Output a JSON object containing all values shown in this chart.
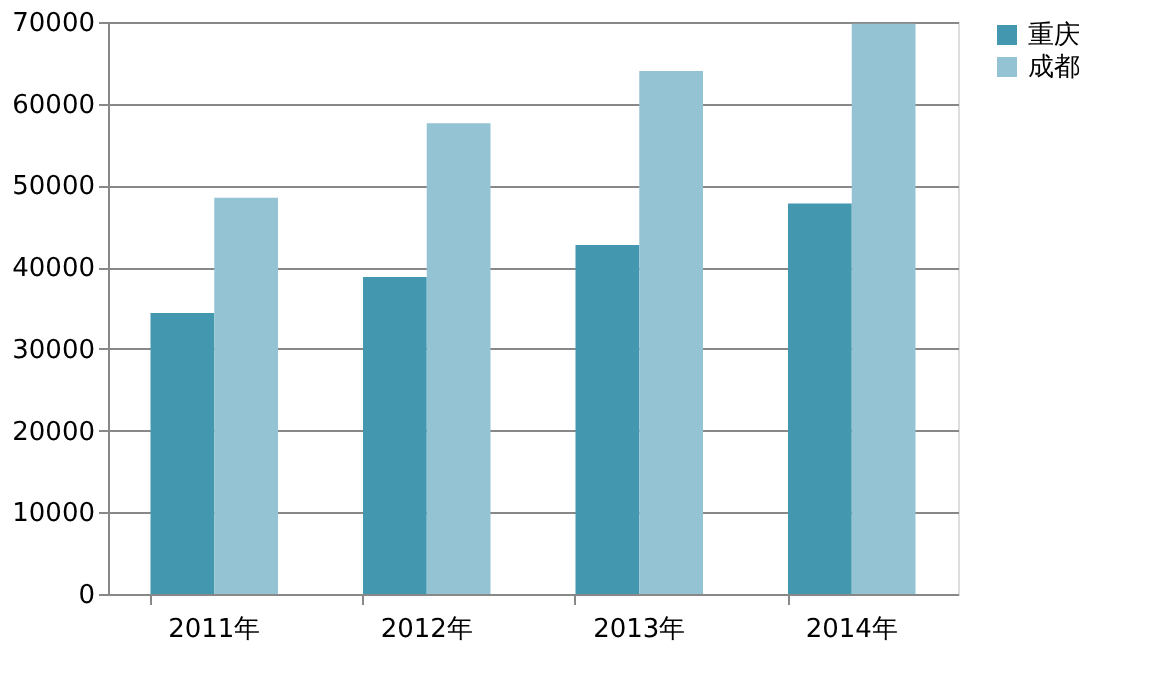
{
  "chart_data": {
    "type": "bar",
    "categories": [
      "2011年",
      "2012年",
      "2013年",
      "2014年"
    ],
    "series": [
      {
        "name": "重庆",
        "color": "#4398b0",
        "values": [
          34400,
          38800,
          42700,
          47800
        ]
      },
      {
        "name": "成都",
        "color": "#94c3d4",
        "values": [
          48500,
          57600,
          64000,
          69800
        ]
      }
    ],
    "ylim": [
      0,
      70000
    ],
    "yticks": [
      0,
      10000,
      20000,
      30000,
      40000,
      50000,
      60000,
      70000
    ],
    "grid": "y",
    "legend": "right"
  }
}
